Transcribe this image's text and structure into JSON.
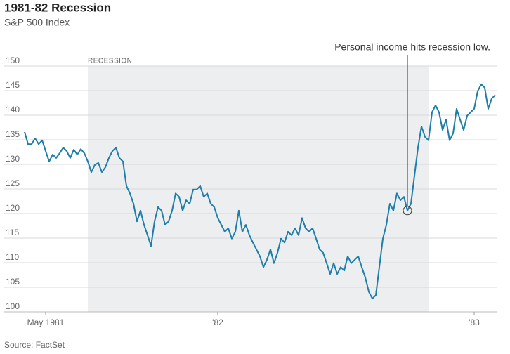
{
  "chart_data": {
    "type": "line",
    "title": "1981-82 Recession",
    "subtitle": "S&P 500 Index",
    "source": "Source: FactSet",
    "categories": [
      null,
      null,
      null,
      null,
      null,
      null,
      "May 1981",
      null,
      null,
      null,
      null,
      null,
      null,
      null,
      null,
      null,
      null,
      null,
      null,
      null,
      null,
      null,
      null,
      null,
      null,
      null,
      null,
      null,
      null,
      null,
      null,
      null,
      null,
      null,
      null,
      null,
      null,
      null,
      null,
      null,
      null,
      null,
      null,
      null,
      null,
      null,
      null,
      null,
      null,
      null,
      null,
      null,
      null,
      null,
      null,
      "'82",
      null,
      null,
      null,
      null,
      null,
      null,
      null,
      null,
      null,
      null,
      null,
      null,
      null,
      null,
      null,
      null,
      null,
      null,
      null,
      null,
      null,
      null,
      null,
      null,
      null,
      null,
      null,
      null,
      null,
      null,
      null,
      null,
      null,
      null,
      null,
      null,
      null,
      null,
      null,
      null,
      null,
      null,
      null,
      null,
      null,
      null,
      null,
      null,
      null,
      null,
      null,
      null,
      null,
      null,
      null,
      null,
      null,
      null,
      null,
      null,
      null,
      null,
      null,
      null,
      null,
      null,
      null,
      null,
      null,
      null,
      null,
      null,
      "'83",
      null,
      null,
      null,
      null,
      null,
      null
    ],
    "series": [
      {
        "name": "S&P 500 Index",
        "color": "#1f7ea9",
        "values": [
          136.6,
          134.1,
          134.1,
          135.3,
          134.1,
          134.9,
          132.7,
          130.6,
          132.0,
          131.3,
          132.3,
          133.4,
          132.7,
          131.3,
          133.0,
          132.0,
          133.1,
          132.3,
          130.6,
          128.4,
          129.9,
          130.3,
          128.4,
          129.4,
          131.3,
          132.7,
          133.4,
          131.3,
          130.6,
          125.6,
          124.1,
          122.0,
          118.4,
          120.6,
          117.7,
          115.6,
          113.4,
          118.4,
          121.3,
          120.6,
          117.7,
          118.4,
          120.6,
          124.1,
          123.4,
          120.6,
          122.7,
          122.0,
          124.9,
          124.9,
          125.6,
          123.4,
          124.1,
          122.0,
          121.3,
          119.1,
          117.7,
          116.3,
          117.0,
          114.9,
          116.3,
          120.6,
          116.3,
          117.7,
          115.6,
          114.1,
          112.7,
          111.3,
          109.1,
          110.6,
          112.7,
          109.9,
          112.0,
          114.9,
          114.1,
          116.3,
          115.6,
          117.0,
          115.6,
          119.1,
          117.0,
          116.3,
          117.0,
          114.9,
          112.7,
          112.0,
          109.9,
          107.7,
          109.9,
          107.7,
          109.1,
          108.4,
          111.3,
          109.9,
          110.6,
          111.3,
          109.1,
          107.0,
          104.1,
          102.7,
          103.4,
          109.1,
          114.9,
          117.7,
          122.0,
          120.6,
          124.1,
          122.7,
          123.4,
          120.6,
          122.0,
          127.7,
          133.4,
          137.7,
          135.6,
          134.9,
          140.6,
          142.0,
          140.6,
          137.0,
          139.1,
          134.9,
          136.3,
          141.3,
          139.1,
          137.0,
          139.9,
          140.6,
          141.3,
          144.9,
          146.3,
          145.6,
          141.3,
          143.4,
          144.1
        ]
      }
    ],
    "ylim": [
      100,
      150
    ],
    "yticks": [
      100,
      105,
      110,
      115,
      120,
      125,
      130,
      135,
      140,
      145,
      150
    ],
    "grid": true,
    "recession": {
      "label": "RECESSION",
      "start": 18,
      "end": 115
    },
    "annotation": {
      "text": "Personal income hits recession low.",
      "index": 109
    }
  }
}
